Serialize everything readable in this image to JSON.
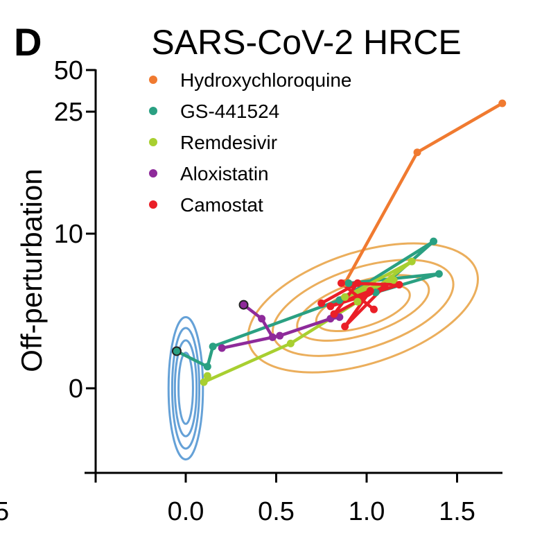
{
  "panel_letter": "D",
  "chart_data": {
    "type": "line",
    "title": "SARS-CoV-2 HRCE",
    "xlabel": "",
    "ylabel": "Off-perturbation",
    "x_ticks": [
      "0.0",
      "0.5",
      "1.0",
      "1.5"
    ],
    "x_tick_values": [
      0.0,
      0.5,
      1.0,
      1.5
    ],
    "y_ticks": [
      "0",
      "10",
      "25",
      "50"
    ],
    "y_tick_values": [
      0,
      10,
      25,
      50
    ],
    "clipped_left_tick": "5",
    "y_scale": "piecewise linear (0–10 linear, 10–50 compressed)",
    "xlim": [
      -0.5,
      1.75
    ],
    "ylim": [
      -5,
      50
    ],
    "legend_position": "top-left",
    "reference_contours": [
      {
        "color": "#4a90d0",
        "center": [
          0.0,
          0.0
        ],
        "radii": [
          [
            0.04,
            2.3
          ],
          [
            0.06,
            3.1
          ],
          [
            0.075,
            3.9
          ],
          [
            0.095,
            4.6
          ]
        ]
      },
      {
        "color": "#e8a040",
        "center": [
          0.98,
          5.2
        ],
        "radii": [
          [
            0.27,
            1.2
          ],
          [
            0.38,
            1.7
          ],
          [
            0.52,
            2.6
          ],
          [
            0.66,
            3.6
          ]
        ],
        "rotation": -18
      }
    ],
    "series": [
      {
        "name": "Hydroxychloroquine",
        "color": "#f07a30",
        "points": [
          [
            0.88,
            6.8
          ],
          [
            1.28,
            20.0
          ],
          [
            1.75,
            30.0
          ]
        ]
      },
      {
        "name": "GS-441524",
        "color": "#2aa082",
        "points": [
          [
            -0.05,
            2.4
          ],
          [
            0.12,
            1.4
          ],
          [
            0.15,
            2.7
          ],
          [
            0.85,
            5.7
          ],
          [
            1.37,
            9.5
          ],
          [
            1.05,
            6.2
          ],
          [
            1.4,
            7.4
          ],
          [
            0.9,
            6.8
          ]
        ]
      },
      {
        "name": "Remdesivir",
        "color": "#a8cf30",
        "points": [
          [
            0.12,
            0.8
          ],
          [
            0.1,
            0.4
          ],
          [
            0.58,
            2.9
          ],
          [
            0.95,
            5.6
          ],
          [
            1.25,
            8.2
          ],
          [
            0.88,
            5.9
          ],
          [
            1.15,
            7.0
          ]
        ]
      },
      {
        "name": "Aloxistatin",
        "color": "#8e2a9a",
        "points": [
          [
            0.32,
            5.4
          ],
          [
            0.42,
            4.5
          ],
          [
            0.48,
            3.3
          ],
          [
            0.2,
            2.6
          ],
          [
            0.52,
            3.4
          ],
          [
            0.8,
            4.5
          ],
          [
            0.85,
            4.6
          ]
        ]
      },
      {
        "name": "Camostat",
        "color": "#ea1f27",
        "points": [
          [
            0.75,
            5.5
          ],
          [
            0.95,
            6.8
          ],
          [
            0.82,
            4.8
          ],
          [
            1.1,
            6.6
          ],
          [
            0.88,
            4.0
          ],
          [
            1.02,
            6.3
          ],
          [
            0.8,
            5.3
          ],
          [
            1.18,
            6.7
          ],
          [
            0.86,
            6.8
          ],
          [
            1.04,
            5.1
          ]
        ]
      }
    ]
  }
}
